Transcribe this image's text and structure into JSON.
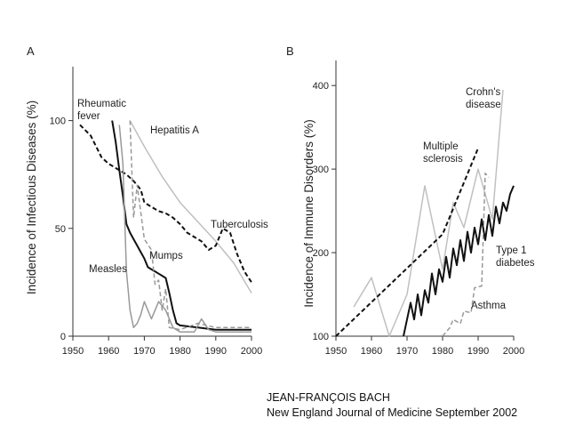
{
  "citation": {
    "author": "JEAN-FRANÇOIS BACH",
    "source": "New England Journal of Medicine September 2002"
  },
  "chart_data": [
    {
      "panel": "A",
      "type": "line",
      "ylabel": "Incidence of Infectious Diseases (%)",
      "xlim": [
        1950,
        2000
      ],
      "ylim": [
        0,
        125
      ],
      "xticks": [
        1950,
        1960,
        1970,
        1980,
        1990,
        2000
      ],
      "yticks": [
        0,
        50,
        100
      ],
      "grid": false,
      "legend": "none",
      "series": [
        {
          "name": "Rheumatic fever",
          "style": "solid",
          "color": "#111111",
          "width": 2,
          "x": [
            1961,
            1962,
            1963,
            1964,
            1965,
            1966,
            1967,
            1968,
            1969,
            1970,
            1971,
            1972,
            1973,
            1974,
            1975,
            1976,
            1977,
            1978,
            1979,
            1980,
            1985,
            1990,
            1995,
            2000
          ],
          "y": [
            100,
            90,
            77,
            65,
            52,
            48,
            45,
            42,
            39,
            36,
            32,
            31,
            30,
            29,
            28,
            27,
            20,
            12,
            6,
            5,
            4,
            3,
            3,
            3
          ]
        },
        {
          "name": "Hepatitis A",
          "style": "solid",
          "color": "#bfbfbf",
          "width": 1.5,
          "x": [
            1966,
            1970,
            1975,
            1980,
            1985,
            1990,
            1995,
            2000
          ],
          "y": [
            100,
            88,
            74,
            62,
            53,
            44,
            34,
            20
          ]
        },
        {
          "name": "Tuberculosis",
          "style": "dashed",
          "color": "#111111",
          "width": 2,
          "x": [
            1952,
            1955,
            1958,
            1960,
            1963,
            1965,
            1967,
            1969,
            1970,
            1972,
            1974,
            1976,
            1978,
            1980,
            1982,
            1984,
            1986,
            1988,
            1990,
            1992,
            1994,
            1996,
            1998,
            2000
          ],
          "y": [
            98,
            93,
            83,
            80,
            77,
            75,
            72,
            68,
            62,
            60,
            58,
            57,
            55,
            52,
            48,
            46,
            44,
            40,
            42,
            50,
            48,
            38,
            30,
            25
          ]
        },
        {
          "name": "Mumps",
          "style": "dashed",
          "color": "#999999",
          "width": 1.5,
          "x": [
            1966,
            1967,
            1968,
            1970,
            1972,
            1973,
            1974,
            1975,
            1976,
            1977,
            1980,
            1985,
            1990,
            1995,
            2000
          ],
          "y": [
            100,
            55,
            70,
            45,
            40,
            24,
            26,
            12,
            22,
            4,
            3,
            6,
            4,
            4,
            4
          ]
        },
        {
          "name": "Measles",
          "style": "solid",
          "color": "#999999",
          "width": 1.5,
          "x": [
            1963,
            1964,
            1965,
            1966,
            1967,
            1968,
            1969,
            1970,
            1972,
            1974,
            1976,
            1978,
            1980,
            1984,
            1986,
            1988,
            1990,
            1995,
            2000
          ],
          "y": [
            98,
            80,
            30,
            12,
            4,
            6,
            10,
            16,
            8,
            16,
            12,
            4,
            2,
            2,
            8,
            3,
            2,
            2,
            2
          ]
        }
      ],
      "annotations": [
        "Rheumatic\nfever",
        "Hepatitis A",
        "Tuberculosis",
        "Mumps",
        "Measles"
      ]
    },
    {
      "panel": "B",
      "type": "line",
      "ylabel": "Incidence of Immune Disorders (%)",
      "xlim": [
        1950,
        2000
      ],
      "ylim": [
        100,
        430
      ],
      "xticks": [
        1950,
        1960,
        1970,
        1980,
        1990,
        2000
      ],
      "yticks": [
        100,
        200,
        300,
        400
      ],
      "grid": false,
      "legend": "none",
      "series": [
        {
          "name": "Crohn's disease",
          "style": "solid",
          "color": "#c0c0c0",
          "width": 1.5,
          "x": [
            1955,
            1960,
            1965,
            1970,
            1975,
            1980,
            1983,
            1986,
            1990,
            1994,
            1997
          ],
          "y": [
            135,
            170,
            100,
            150,
            280,
            180,
            260,
            230,
            300,
            240,
            395
          ]
        },
        {
          "name": "Multiple sclerosis",
          "style": "dashed",
          "color": "#111111",
          "width": 2,
          "x": [
            1950,
            1980,
            1990
          ],
          "y": [
            100,
            222,
            325
          ]
        },
        {
          "name": "Asthma",
          "style": "dashed",
          "color": "#999999",
          "width": 1.5,
          "x": [
            1980,
            1982,
            1983,
            1985,
            1986,
            1988,
            1989,
            1991,
            1992,
            1993
          ],
          "y": [
            100,
            110,
            120,
            115,
            130,
            128,
            158,
            160,
            295,
            290
          ]
        },
        {
          "name": "Type 1 diabetes",
          "style": "solid",
          "color": "#111111",
          "width": 2,
          "x": [
            1969,
            1971,
            1972,
            1973,
            1974,
            1975,
            1976,
            1977,
            1978,
            1979,
            1980,
            1981,
            1982,
            1983,
            1984,
            1985,
            1986,
            1987,
            1988,
            1989,
            1990,
            1991,
            1992,
            1993,
            1994,
            1995,
            1996,
            1997,
            1998,
            1999,
            2000
          ],
          "y": [
            100,
            140,
            120,
            150,
            125,
            155,
            140,
            175,
            150,
            180,
            165,
            195,
            170,
            205,
            185,
            215,
            190,
            225,
            200,
            230,
            210,
            240,
            215,
            245,
            220,
            255,
            235,
            260,
            250,
            270,
            280
          ]
        }
      ],
      "annotations": [
        "Crohn's\ndisease",
        "Multiple\nsclerosis",
        "Type 1\ndiabetes",
        "Asthma"
      ]
    }
  ]
}
